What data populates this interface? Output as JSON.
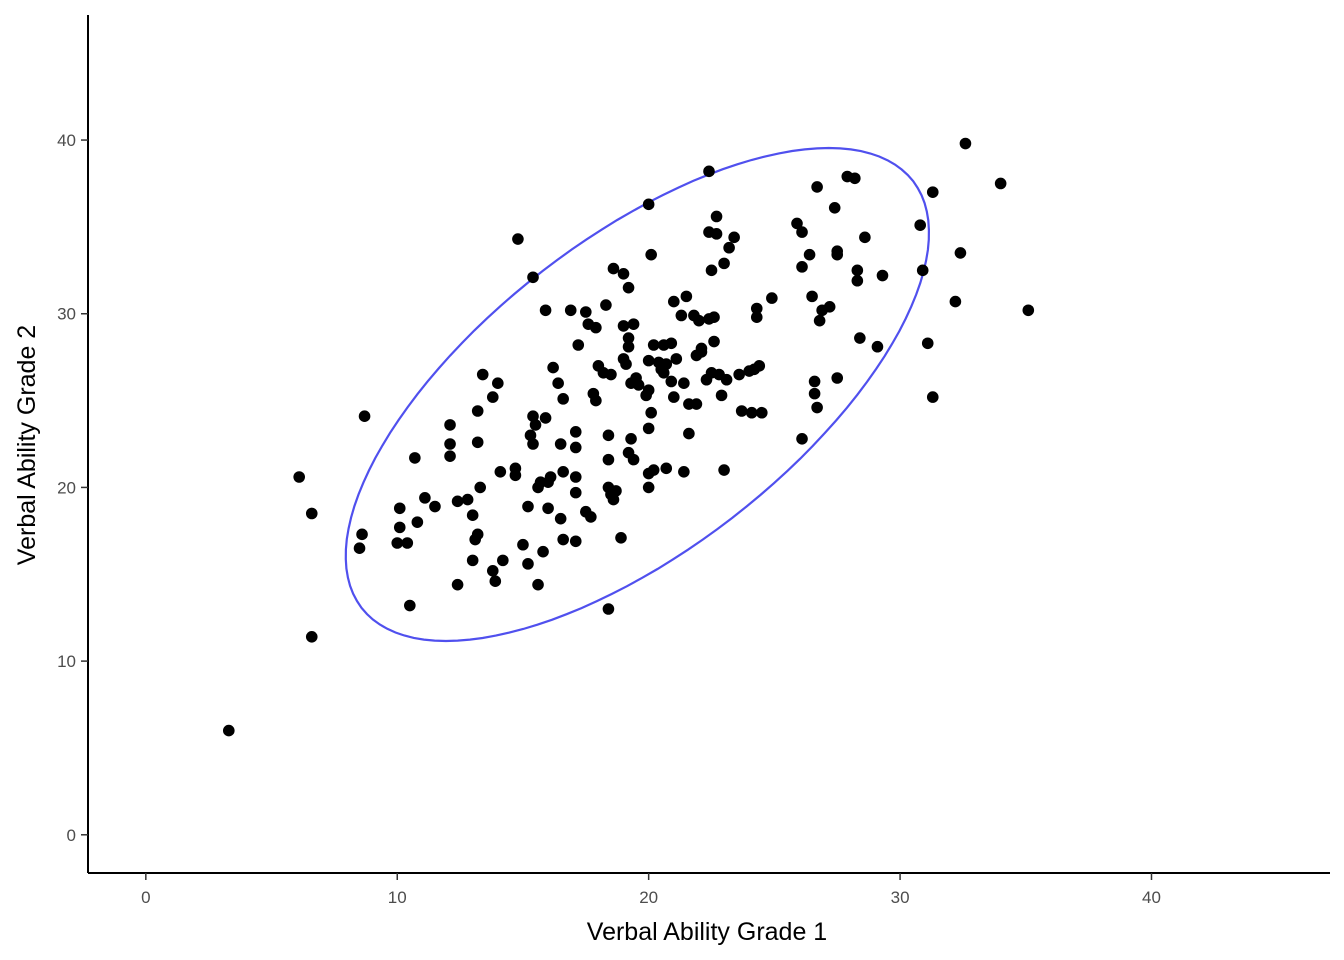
{
  "chart_data": {
    "type": "scatter",
    "xlabel": "Verbal Ability Grade 1",
    "ylabel": "Verbal Ability Grade 2",
    "xlim": [
      -2.3,
      47.1
    ],
    "ylim": [
      -2.2,
      47.2
    ],
    "x_ticks": [
      0,
      10,
      20,
      30,
      40
    ],
    "y_ticks": [
      0,
      10,
      20,
      30,
      40
    ],
    "grid": false,
    "point_color": "#000000",
    "ellipse_color": "#5050EE",
    "ellipse": {
      "center": [
        19.55,
        25.35
      ],
      "cov": [
        [
          27.8,
          22.3
        ],
        [
          22.3,
          41.6
        ]
      ],
      "scale": 2.2
    },
    "points": [
      [
        3.3,
        6.0
      ],
      [
        6.1,
        20.6
      ],
      [
        6.6,
        18.5
      ],
      [
        6.6,
        11.4
      ],
      [
        8.5,
        16.5
      ],
      [
        8.6,
        17.3
      ],
      [
        8.7,
        24.1
      ],
      [
        10.0,
        16.8
      ],
      [
        10.1,
        17.7
      ],
      [
        10.1,
        18.8
      ],
      [
        10.4,
        16.8
      ],
      [
        10.5,
        13.2
      ],
      [
        10.7,
        21.7
      ],
      [
        10.8,
        18.0
      ],
      [
        11.1,
        19.4
      ],
      [
        11.5,
        18.9
      ],
      [
        12.1,
        21.8
      ],
      [
        12.1,
        22.5
      ],
      [
        12.1,
        23.6
      ],
      [
        12.4,
        14.4
      ],
      [
        12.4,
        19.2
      ],
      [
        12.8,
        19.3
      ],
      [
        13.0,
        18.4
      ],
      [
        13.0,
        15.8
      ],
      [
        13.1,
        17.0
      ],
      [
        13.2,
        17.3
      ],
      [
        13.2,
        22.6
      ],
      [
        13.2,
        24.4
      ],
      [
        13.3,
        20.0
      ],
      [
        13.4,
        26.5
      ],
      [
        13.8,
        15.2
      ],
      [
        13.8,
        25.2
      ],
      [
        13.9,
        14.6
      ],
      [
        14.0,
        26.0
      ],
      [
        14.1,
        20.9
      ],
      [
        14.2,
        15.8
      ],
      [
        14.7,
        21.1
      ],
      [
        14.7,
        20.7
      ],
      [
        14.8,
        34.3
      ],
      [
        15.0,
        16.7
      ],
      [
        15.2,
        15.6
      ],
      [
        15.2,
        18.9
      ],
      [
        15.3,
        23.0
      ],
      [
        15.4,
        22.5
      ],
      [
        15.4,
        32.1
      ],
      [
        15.4,
        24.1
      ],
      [
        15.5,
        23.6
      ],
      [
        15.6,
        20.0
      ],
      [
        15.6,
        14.4
      ],
      [
        15.7,
        20.3
      ],
      [
        15.8,
        16.3
      ],
      [
        15.9,
        24.0
      ],
      [
        15.9,
        30.2
      ],
      [
        16.0,
        20.3
      ],
      [
        16.0,
        18.8
      ],
      [
        16.1,
        20.6
      ],
      [
        16.2,
        26.9
      ],
      [
        16.4,
        26.0
      ],
      [
        16.5,
        18.2
      ],
      [
        16.5,
        22.5
      ],
      [
        16.6,
        20.9
      ],
      [
        16.6,
        25.1
      ],
      [
        16.6,
        17.0
      ],
      [
        16.9,
        30.2
      ],
      [
        17.1,
        23.2
      ],
      [
        17.1,
        22.3
      ],
      [
        17.1,
        19.7
      ],
      [
        17.1,
        20.6
      ],
      [
        17.1,
        16.9
      ],
      [
        17.2,
        28.2
      ],
      [
        17.5,
        30.1
      ],
      [
        17.5,
        18.6
      ],
      [
        17.6,
        29.4
      ],
      [
        17.7,
        18.3
      ],
      [
        17.8,
        25.4
      ],
      [
        17.9,
        25.0
      ],
      [
        17.9,
        29.2
      ],
      [
        18.0,
        27.0
      ],
      [
        18.2,
        26.6
      ],
      [
        18.3,
        30.5
      ],
      [
        18.4,
        13.0
      ],
      [
        18.4,
        23.0
      ],
      [
        18.4,
        21.6
      ],
      [
        18.4,
        20.0
      ],
      [
        18.5,
        19.6
      ],
      [
        18.5,
        26.5
      ],
      [
        18.6,
        19.3
      ],
      [
        18.6,
        32.6
      ],
      [
        18.7,
        19.8
      ],
      [
        18.9,
        17.1
      ],
      [
        19.0,
        32.3
      ],
      [
        19.0,
        27.4
      ],
      [
        19.0,
        29.3
      ],
      [
        19.1,
        27.1
      ],
      [
        19.2,
        28.6
      ],
      [
        19.2,
        28.1
      ],
      [
        19.2,
        22.0
      ],
      [
        19.3,
        22.8
      ],
      [
        19.2,
        31.5
      ],
      [
        19.3,
        26.0
      ],
      [
        19.4,
        29.4
      ],
      [
        19.4,
        21.6
      ],
      [
        19.5,
        26.3
      ],
      [
        19.6,
        25.9
      ],
      [
        19.9,
        25.3
      ],
      [
        20.0,
        25.6
      ],
      [
        20.0,
        27.3
      ],
      [
        20.0,
        20.0
      ],
      [
        20.0,
        23.4
      ],
      [
        20.0,
        20.8
      ],
      [
        20.0,
        36.3
      ],
      [
        20.1,
        33.4
      ],
      [
        20.1,
        24.3
      ],
      [
        20.2,
        28.2
      ],
      [
        20.2,
        21.0
      ],
      [
        20.4,
        27.2
      ],
      [
        20.5,
        26.8
      ],
      [
        20.6,
        26.6
      ],
      [
        20.6,
        28.2
      ],
      [
        20.7,
        27.1
      ],
      [
        20.7,
        21.1
      ],
      [
        20.9,
        28.3
      ],
      [
        20.9,
        26.1
      ],
      [
        21.0,
        30.7
      ],
      [
        21.0,
        25.2
      ],
      [
        21.1,
        27.4
      ],
      [
        21.3,
        29.9
      ],
      [
        21.4,
        26.0
      ],
      [
        21.4,
        20.9
      ],
      [
        21.5,
        31.0
      ],
      [
        21.6,
        24.8
      ],
      [
        21.6,
        23.1
      ],
      [
        21.8,
        29.9
      ],
      [
        21.9,
        24.8
      ],
      [
        21.9,
        27.6
      ],
      [
        22.0,
        29.6
      ],
      [
        22.1,
        27.8
      ],
      [
        22.1,
        28.0
      ],
      [
        22.3,
        26.2
      ],
      [
        22.4,
        29.7
      ],
      [
        22.4,
        38.2
      ],
      [
        22.4,
        34.7
      ],
      [
        22.5,
        32.5
      ],
      [
        22.5,
        26.6
      ],
      [
        22.6,
        29.8
      ],
      [
        22.6,
        28.4
      ],
      [
        22.7,
        35.6
      ],
      [
        22.7,
        34.6
      ],
      [
        22.8,
        26.5
      ],
      [
        22.9,
        25.3
      ],
      [
        23.0,
        32.9
      ],
      [
        23.0,
        21.0
      ],
      [
        23.1,
        26.2
      ],
      [
        23.2,
        33.8
      ],
      [
        23.4,
        34.4
      ],
      [
        23.6,
        26.5
      ],
      [
        23.7,
        24.4
      ],
      [
        24.0,
        26.7
      ],
      [
        24.1,
        24.3
      ],
      [
        24.2,
        26.8
      ],
      [
        24.3,
        30.3
      ],
      [
        24.3,
        29.8
      ],
      [
        24.4,
        27.0
      ],
      [
        24.5,
        24.3
      ],
      [
        24.9,
        30.9
      ],
      [
        25.9,
        35.2
      ],
      [
        26.1,
        34.7
      ],
      [
        26.1,
        32.7
      ],
      [
        26.1,
        22.8
      ],
      [
        26.4,
        33.4
      ],
      [
        26.5,
        31.0
      ],
      [
        26.6,
        25.4
      ],
      [
        26.6,
        26.1
      ],
      [
        26.7,
        37.3
      ],
      [
        26.7,
        24.6
      ],
      [
        26.8,
        29.6
      ],
      [
        26.9,
        30.2
      ],
      [
        27.2,
        30.4
      ],
      [
        27.4,
        36.1
      ],
      [
        27.5,
        33.6
      ],
      [
        27.5,
        33.4
      ],
      [
        27.5,
        26.3
      ],
      [
        27.9,
        37.9
      ],
      [
        28.2,
        37.8
      ],
      [
        28.3,
        31.9
      ],
      [
        28.3,
        32.5
      ],
      [
        28.4,
        28.6
      ],
      [
        28.6,
        34.4
      ],
      [
        29.1,
        28.1
      ],
      [
        29.3,
        32.2
      ],
      [
        30.8,
        35.1
      ],
      [
        30.9,
        32.5
      ],
      [
        31.1,
        28.3
      ],
      [
        31.3,
        37.0
      ],
      [
        31.3,
        25.2
      ],
      [
        32.2,
        30.7
      ],
      [
        32.4,
        33.5
      ],
      [
        32.6,
        39.8
      ],
      [
        34.0,
        37.5
      ],
      [
        35.1,
        30.2
      ]
    ]
  }
}
